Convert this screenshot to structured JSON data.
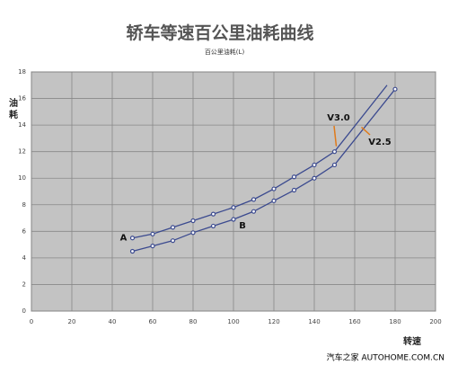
{
  "chart_data": {
    "type": "line",
    "title": "轿车等速百公里油耗曲线",
    "subtitle": "百公里油耗(L)",
    "y_label": "油耗",
    "x_label": "转速",
    "watermark": "汽车之家 AUTOHOME.COM.CN",
    "xlim": [
      0,
      200
    ],
    "xticks": [
      0,
      20,
      40,
      60,
      80,
      100,
      120,
      140,
      160,
      180,
      200
    ],
    "ylim": [
      0,
      18
    ],
    "yticks": [
      0,
      2,
      4,
      6,
      8,
      10,
      12,
      14,
      16,
      18
    ],
    "grid": true,
    "series": [
      {
        "name": "V3.0",
        "color": "#3b4a8f",
        "x": [
          50,
          60,
          70,
          80,
          90,
          100,
          110,
          120,
          130,
          140,
          150,
          176
        ],
        "values": [
          5.5,
          5.8,
          6.3,
          6.8,
          7.3,
          7.8,
          8.4,
          9.2,
          10.1,
          11.0,
          12.0,
          17.0
        ]
      },
      {
        "name": "V2.5",
        "color": "#3b4a8f",
        "x": [
          50,
          60,
          70,
          80,
          90,
          100,
          110,
          120,
          130,
          140,
          150,
          180
        ],
        "values": [
          4.5,
          4.9,
          5.3,
          5.9,
          6.4,
          6.9,
          7.5,
          8.3,
          9.1,
          10.0,
          11.0,
          16.7
        ]
      }
    ],
    "annotations": [
      {
        "text": "A"
      },
      {
        "text": "B"
      }
    ]
  }
}
